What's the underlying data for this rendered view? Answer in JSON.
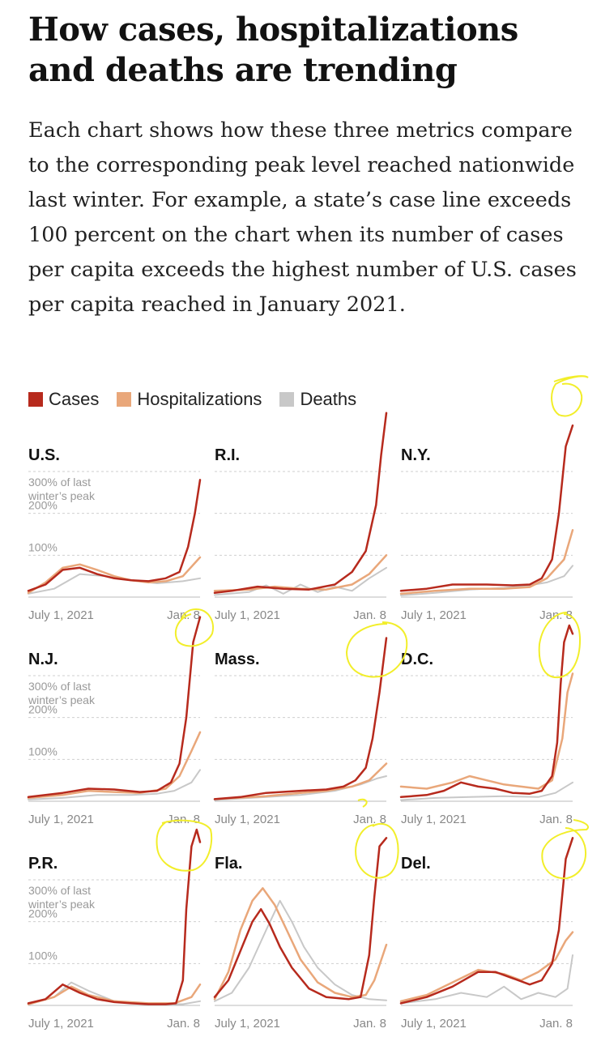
{
  "headline": "How cases, hospitalizations and deaths are trending",
  "intro": "Each chart shows how these three metrics compare to the corresponding peak level reached nationwide last winter. For example, a state’s case line exceeds 100 percent on the chart when its number of cases per capita exceeds the highest number of U.S. cases per capita reached in January 2021.",
  "legend": [
    {
      "label": "Cases",
      "color": "#b72a1d"
    },
    {
      "label": "Hospitalizations",
      "color": "#e9a77a"
    },
    {
      "label": "Deaths",
      "color": "#c8c8c8"
    }
  ],
  "colors": {
    "cases": "#b72a1d",
    "hospitalizations": "#e9a77a",
    "deaths": "#c8c8c8",
    "annotation": "#f2ee2a"
  },
  "chart_data": {
    "type": "line",
    "x_start_label": "July 1, 2021",
    "x_end_label": "Jan. 8",
    "y_tick_labels": [
      "300% of last winter’s peak",
      "200%",
      "100%"
    ],
    "ylim": [
      0,
      300
    ],
    "series_names": [
      "Cases",
      "Hospitalizations",
      "Deaths"
    ],
    "panels": [
      {
        "name": "U.S.",
        "show_y_labels": true,
        "cases": [
          [
            0,
            15
          ],
          [
            0.1,
            30
          ],
          [
            0.2,
            65
          ],
          [
            0.3,
            70
          ],
          [
            0.4,
            55
          ],
          [
            0.5,
            45
          ],
          [
            0.6,
            40
          ],
          [
            0.7,
            38
          ],
          [
            0.8,
            45
          ],
          [
            0.88,
            60
          ],
          [
            0.93,
            120
          ],
          [
            0.97,
            200
          ],
          [
            1,
            280
          ]
        ],
        "hospitalizations": [
          [
            0,
            10
          ],
          [
            0.1,
            35
          ],
          [
            0.2,
            70
          ],
          [
            0.3,
            78
          ],
          [
            0.4,
            65
          ],
          [
            0.5,
            50
          ],
          [
            0.6,
            40
          ],
          [
            0.7,
            35
          ],
          [
            0.8,
            38
          ],
          [
            0.9,
            50
          ],
          [
            1,
            95
          ]
        ],
        "deaths": [
          [
            0,
            8
          ],
          [
            0.15,
            20
          ],
          [
            0.3,
            55
          ],
          [
            0.45,
            50
          ],
          [
            0.6,
            40
          ],
          [
            0.75,
            33
          ],
          [
            0.9,
            38
          ],
          [
            1,
            45
          ]
        ]
      },
      {
        "name": "R.I.",
        "show_y_labels": false,
        "cases": [
          [
            0,
            10
          ],
          [
            0.1,
            15
          ],
          [
            0.25,
            25
          ],
          [
            0.4,
            20
          ],
          [
            0.55,
            18
          ],
          [
            0.7,
            30
          ],
          [
            0.8,
            60
          ],
          [
            0.88,
            110
          ],
          [
            0.94,
            220
          ],
          [
            0.97,
            340
          ],
          [
            1,
            440
          ]
        ],
        "hospitalizations": [
          [
            0,
            15
          ],
          [
            0.2,
            18
          ],
          [
            0.35,
            25
          ],
          [
            0.5,
            20
          ],
          [
            0.65,
            18
          ],
          [
            0.8,
            30
          ],
          [
            0.9,
            55
          ],
          [
            1,
            100
          ]
        ],
        "deaths": [
          [
            0,
            5
          ],
          [
            0.2,
            12
          ],
          [
            0.3,
            28
          ],
          [
            0.4,
            8
          ],
          [
            0.5,
            30
          ],
          [
            0.6,
            12
          ],
          [
            0.7,
            25
          ],
          [
            0.8,
            15
          ],
          [
            0.9,
            45
          ],
          [
            1,
            70
          ]
        ]
      },
      {
        "name": "N.Y.",
        "show_y_labels": false,
        "cases": [
          [
            0,
            15
          ],
          [
            0.15,
            20
          ],
          [
            0.3,
            30
          ],
          [
            0.5,
            30
          ],
          [
            0.65,
            28
          ],
          [
            0.75,
            30
          ],
          [
            0.82,
            45
          ],
          [
            0.88,
            90
          ],
          [
            0.92,
            200
          ],
          [
            0.96,
            360
          ],
          [
            1,
            410
          ]
        ],
        "hospitalizations": [
          [
            0,
            8
          ],
          [
            0.2,
            15
          ],
          [
            0.4,
            20
          ],
          [
            0.6,
            20
          ],
          [
            0.75,
            24
          ],
          [
            0.85,
            45
          ],
          [
            0.95,
            90
          ],
          [
            1,
            160
          ]
        ],
        "deaths": [
          [
            0,
            4
          ],
          [
            0.2,
            10
          ],
          [
            0.4,
            18
          ],
          [
            0.6,
            22
          ],
          [
            0.75,
            28
          ],
          [
            0.85,
            35
          ],
          [
            0.95,
            50
          ],
          [
            1,
            75
          ]
        ]
      },
      {
        "name": "N.J.",
        "show_y_labels": true,
        "cases": [
          [
            0,
            10
          ],
          [
            0.2,
            20
          ],
          [
            0.35,
            30
          ],
          [
            0.5,
            28
          ],
          [
            0.65,
            22
          ],
          [
            0.75,
            25
          ],
          [
            0.83,
            45
          ],
          [
            0.88,
            90
          ],
          [
            0.92,
            200
          ],
          [
            0.96,
            380
          ],
          [
            1,
            440
          ]
        ],
        "hospitalizations": [
          [
            0,
            8
          ],
          [
            0.2,
            15
          ],
          [
            0.35,
            25
          ],
          [
            0.5,
            22
          ],
          [
            0.65,
            20
          ],
          [
            0.8,
            30
          ],
          [
            0.88,
            60
          ],
          [
            0.95,
            120
          ],
          [
            1,
            165
          ]
        ],
        "deaths": [
          [
            0,
            4
          ],
          [
            0.2,
            8
          ],
          [
            0.4,
            15
          ],
          [
            0.6,
            15
          ],
          [
            0.75,
            18
          ],
          [
            0.85,
            25
          ],
          [
            0.95,
            45
          ],
          [
            1,
            75
          ]
        ]
      },
      {
        "name": "Mass.",
        "show_y_labels": false,
        "cases": [
          [
            0,
            5
          ],
          [
            0.15,
            10
          ],
          [
            0.3,
            20
          ],
          [
            0.5,
            25
          ],
          [
            0.65,
            28
          ],
          [
            0.75,
            35
          ],
          [
            0.82,
            50
          ],
          [
            0.88,
            80
          ],
          [
            0.92,
            150
          ],
          [
            0.96,
            260
          ],
          [
            1,
            390
          ]
        ],
        "hospitalizations": [
          [
            0,
            5
          ],
          [
            0.3,
            12
          ],
          [
            0.5,
            20
          ],
          [
            0.65,
            25
          ],
          [
            0.8,
            35
          ],
          [
            0.9,
            50
          ],
          [
            1,
            90
          ]
        ],
        "deaths": [
          [
            0,
            3
          ],
          [
            0.3,
            10
          ],
          [
            0.5,
            15
          ],
          [
            0.7,
            25
          ],
          [
            0.85,
            40
          ],
          [
            0.95,
            55
          ],
          [
            1,
            60
          ]
        ]
      },
      {
        "name": "D.C.",
        "show_y_labels": false,
        "cases": [
          [
            0,
            10
          ],
          [
            0.15,
            15
          ],
          [
            0.25,
            25
          ],
          [
            0.35,
            45
          ],
          [
            0.45,
            35
          ],
          [
            0.55,
            30
          ],
          [
            0.65,
            20
          ],
          [
            0.75,
            18
          ],
          [
            0.82,
            25
          ],
          [
            0.88,
            60
          ],
          [
            0.91,
            140
          ],
          [
            0.93,
            280
          ],
          [
            0.95,
            380
          ],
          [
            0.98,
            420
          ],
          [
            1,
            400
          ]
        ],
        "hospitalizations": [
          [
            0,
            35
          ],
          [
            0.15,
            30
          ],
          [
            0.3,
            45
          ],
          [
            0.4,
            60
          ],
          [
            0.5,
            50
          ],
          [
            0.6,
            40
          ],
          [
            0.7,
            35
          ],
          [
            0.8,
            30
          ],
          [
            0.88,
            50
          ],
          [
            0.94,
            150
          ],
          [
            0.97,
            260
          ],
          [
            1,
            305
          ]
        ],
        "deaths": [
          [
            0,
            3
          ],
          [
            0.2,
            8
          ],
          [
            0.4,
            10
          ],
          [
            0.6,
            12
          ],
          [
            0.8,
            10
          ],
          [
            0.9,
            20
          ],
          [
            1,
            45
          ]
        ]
      },
      {
        "name": "P.R.",
        "show_y_labels": true,
        "cases": [
          [
            0,
            5
          ],
          [
            0.1,
            15
          ],
          [
            0.2,
            50
          ],
          [
            0.3,
            30
          ],
          [
            0.4,
            15
          ],
          [
            0.5,
            8
          ],
          [
            0.6,
            5
          ],
          [
            0.7,
            3
          ],
          [
            0.8,
            3
          ],
          [
            0.86,
            5
          ],
          [
            0.9,
            60
          ],
          [
            0.92,
            230
          ],
          [
            0.95,
            380
          ],
          [
            0.98,
            420
          ],
          [
            1,
            390
          ]
        ],
        "hospitalizations": [
          [
            0,
            3
          ],
          [
            0.15,
            20
          ],
          [
            0.25,
            45
          ],
          [
            0.35,
            25
          ],
          [
            0.5,
            10
          ],
          [
            0.7,
            5
          ],
          [
            0.85,
            5
          ],
          [
            0.95,
            20
          ],
          [
            1,
            50
          ]
        ],
        "deaths": [
          [
            0,
            2
          ],
          [
            0.15,
            20
          ],
          [
            0.25,
            55
          ],
          [
            0.35,
            35
          ],
          [
            0.5,
            10
          ],
          [
            0.7,
            3
          ],
          [
            0.9,
            3
          ],
          [
            1,
            10
          ]
        ]
      },
      {
        "name": "Fla.",
        "show_y_labels": false,
        "cases": [
          [
            0,
            20
          ],
          [
            0.08,
            60
          ],
          [
            0.15,
            130
          ],
          [
            0.22,
            200
          ],
          [
            0.27,
            230
          ],
          [
            0.32,
            195
          ],
          [
            0.38,
            140
          ],
          [
            0.45,
            90
          ],
          [
            0.55,
            40
          ],
          [
            0.65,
            20
          ],
          [
            0.78,
            15
          ],
          [
            0.85,
            20
          ],
          [
            0.9,
            120
          ],
          [
            0.93,
            260
          ],
          [
            0.96,
            380
          ],
          [
            1,
            400
          ]
        ],
        "hospitalizations": [
          [
            0,
            15
          ],
          [
            0.08,
            80
          ],
          [
            0.15,
            180
          ],
          [
            0.22,
            250
          ],
          [
            0.28,
            280
          ],
          [
            0.35,
            240
          ],
          [
            0.42,
            180
          ],
          [
            0.5,
            110
          ],
          [
            0.6,
            55
          ],
          [
            0.7,
            30
          ],
          [
            0.8,
            20
          ],
          [
            0.88,
            25
          ],
          [
            0.93,
            60
          ],
          [
            1,
            145
          ]
        ],
        "deaths": [
          [
            0,
            10
          ],
          [
            0.1,
            30
          ],
          [
            0.2,
            90
          ],
          [
            0.3,
            180
          ],
          [
            0.38,
            250
          ],
          [
            0.45,
            200
          ],
          [
            0.52,
            140
          ],
          [
            0.6,
            90
          ],
          [
            0.7,
            50
          ],
          [
            0.8,
            25
          ],
          [
            0.9,
            15
          ],
          [
            1,
            12
          ]
        ]
      },
      {
        "name": "Del.",
        "show_y_labels": false,
        "cases": [
          [
            0,
            5
          ],
          [
            0.15,
            20
          ],
          [
            0.3,
            45
          ],
          [
            0.45,
            80
          ],
          [
            0.55,
            80
          ],
          [
            0.65,
            65
          ],
          [
            0.75,
            50
          ],
          [
            0.82,
            60
          ],
          [
            0.88,
            100
          ],
          [
            0.92,
            180
          ],
          [
            0.96,
            350
          ],
          [
            1,
            400
          ]
        ],
        "hospitalizations": [
          [
            0,
            10
          ],
          [
            0.15,
            25
          ],
          [
            0.3,
            55
          ],
          [
            0.45,
            85
          ],
          [
            0.6,
            75
          ],
          [
            0.7,
            60
          ],
          [
            0.8,
            80
          ],
          [
            0.9,
            110
          ],
          [
            0.96,
            155
          ],
          [
            1,
            175
          ]
        ],
        "deaths": [
          [
            0,
            5
          ],
          [
            0.2,
            15
          ],
          [
            0.35,
            30
          ],
          [
            0.5,
            20
          ],
          [
            0.6,
            45
          ],
          [
            0.7,
            15
          ],
          [
            0.8,
            30
          ],
          [
            0.9,
            20
          ],
          [
            0.97,
            40
          ],
          [
            1,
            120
          ]
        ]
      }
    ]
  }
}
